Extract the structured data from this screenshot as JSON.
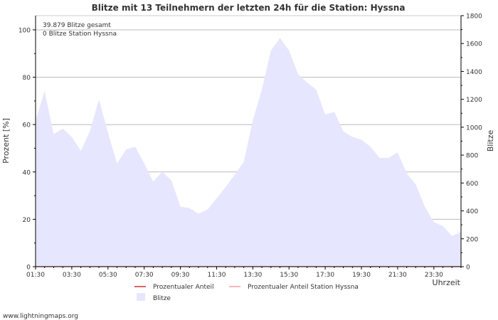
{
  "chart_data": {
    "type": "area",
    "title": "Blitze mit 13 Teilnehmern der letzten 24h für die Station: Hyssna",
    "annotations": [
      "39.879 Blitze gesamt",
      "0 Blitze Station Hyssna"
    ],
    "ylabel_left": "Prozent   [%]",
    "ylabel_right": "Blitze",
    "xlabel": "Uhrzeit",
    "ylim_left": [
      0,
      106
    ],
    "ylim_right": [
      0,
      1800
    ],
    "yticks_left": [
      0,
      20,
      40,
      60,
      80,
      100
    ],
    "yticks_right": [
      0,
      200,
      400,
      600,
      800,
      1000,
      1200,
      1400,
      1600,
      1800
    ],
    "xticks": [
      "01:30",
      "03:30",
      "05:30",
      "07:30",
      "09:30",
      "11:30",
      "13:30",
      "15:30",
      "17:30",
      "19:30",
      "21:30",
      "23:30"
    ],
    "x_hours": [
      1.5,
      2.0,
      2.5,
      3.0,
      3.5,
      4.0,
      4.5,
      5.0,
      5.5,
      6.0,
      6.5,
      7.0,
      7.5,
      8.0,
      8.5,
      9.0,
      9.5,
      10.0,
      10.5,
      11.0,
      11.5,
      12.0,
      12.5,
      13.0,
      13.5,
      14.0,
      14.5,
      15.0,
      15.5,
      16.0,
      16.5,
      17.0,
      17.5,
      18.0,
      18.5,
      19.0,
      19.5,
      20.0,
      20.5,
      21.0,
      21.5,
      22.0,
      22.5,
      23.0,
      23.5,
      24.0,
      24.5,
      25.0
    ],
    "series": [
      {
        "name": "Blitze",
        "axis": "right",
        "color": "#e6e6fe",
        "values": [
          1050,
          1260,
          950,
          990,
          930,
          830,
          970,
          1200,
          960,
          740,
          840,
          860,
          740,
          610,
          680,
          620,
          430,
          420,
          380,
          410,
          490,
          570,
          660,
          750,
          1050,
          1270,
          1550,
          1640,
          1550,
          1380,
          1320,
          1270,
          1090,
          1110,
          970,
          930,
          910,
          860,
          780,
          780,
          820,
          670,
          590,
          430,
          320,
          290,
          220,
          250
        ]
      },
      {
        "name": "Prozentualer Anteil",
        "axis": "left",
        "color": "#d03030",
        "values": [
          0,
          0,
          0,
          0,
          0,
          0,
          0,
          0,
          0,
          0,
          0,
          0,
          0,
          0,
          0,
          0,
          0,
          0,
          0,
          0,
          0,
          0,
          0,
          0,
          0,
          0,
          0,
          0,
          0,
          0,
          0,
          0,
          0,
          0,
          0,
          0,
          0,
          0,
          0,
          0,
          0,
          0,
          0,
          0,
          0,
          0,
          0,
          0
        ]
      },
      {
        "name": "Prozentualer Anteil Station Hyssna",
        "axis": "left",
        "color": "#f0a0a0",
        "values": [
          0,
          0,
          0,
          0,
          0,
          0,
          0,
          0,
          0,
          0,
          0,
          0,
          0,
          0,
          0,
          0,
          0,
          0,
          0,
          0,
          0,
          0,
          0,
          0,
          0,
          0,
          0,
          0,
          0,
          0,
          0,
          0,
          0,
          0,
          0,
          0,
          0,
          0,
          0,
          0,
          0,
          0,
          0,
          0,
          0,
          0,
          0,
          0
        ]
      }
    ],
    "legend": [
      "Prozentualer Anteil",
      "Prozentualer Anteil Station Hyssna",
      "Blitze"
    ]
  },
  "footer": "www.lightningmaps.org"
}
